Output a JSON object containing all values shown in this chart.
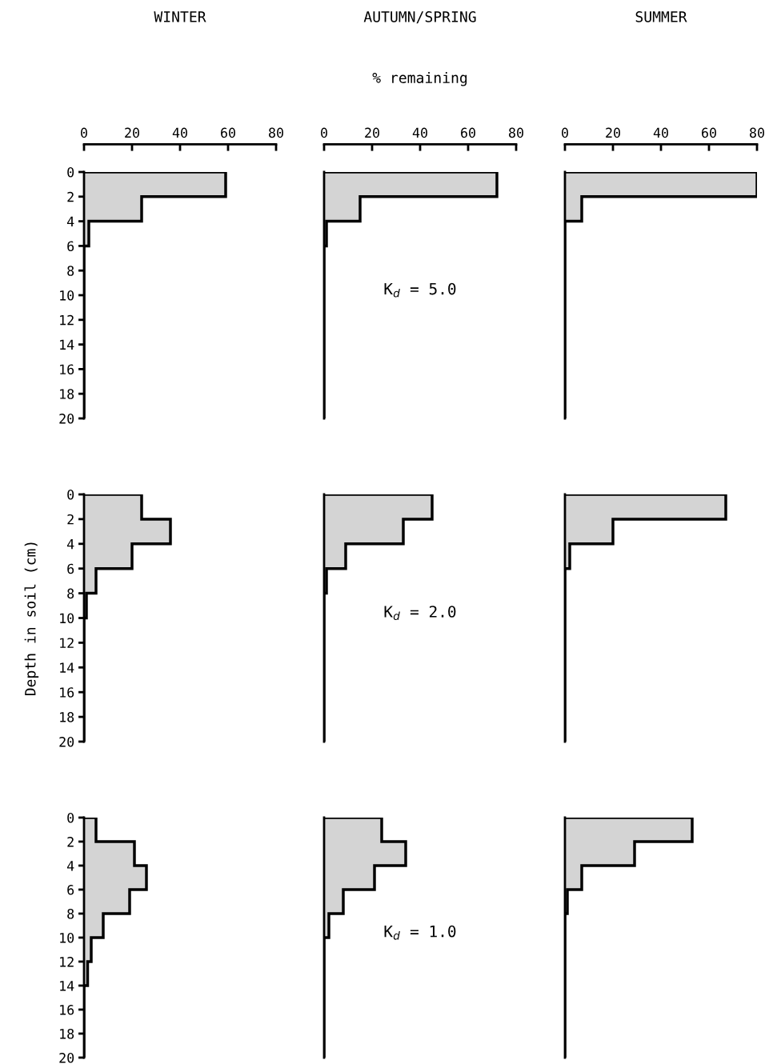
{
  "chart_data": [
    {
      "type": "histogram",
      "orientation": "horizontal",
      "title": "WINTER",
      "ylabel": null,
      "bins": [
        0,
        2,
        4,
        6,
        8,
        10,
        12,
        14,
        16,
        18,
        20
      ],
      "values": [
        59,
        24,
        2,
        0,
        0,
        0,
        0,
        0,
        0,
        0
      ],
      "color": "#d4d4d4",
      "xlim": [
        0,
        80
      ],
      "xticks": [
        0,
        20,
        40,
        60,
        80
      ],
      "ylim": [
        20,
        0
      ],
      "yticks": [
        0,
        2,
        4,
        6,
        8,
        10,
        12,
        14,
        16,
        18,
        20
      ]
    },
    {
      "type": "histogram",
      "orientation": "horizontal",
      "title": "AUTUMN/SPRING",
      "xlabel": "% remaining",
      "annotations": [
        "K$_{d}$ = 5.0"
      ],
      "bins": [
        0,
        2,
        4,
        6,
        8,
        10,
        12,
        14,
        16,
        18,
        20
      ],
      "values": [
        72,
        15,
        1,
        0,
        0,
        0,
        0,
        0,
        0,
        0
      ],
      "color": "#d4d4d4",
      "xlim": [
        0,
        80
      ],
      "xticks": [
        0,
        20,
        40,
        60,
        80
      ],
      "ylim": [
        20,
        0
      ],
      "yticks": [
        0,
        2,
        4,
        6,
        8,
        10,
        12,
        14,
        16,
        18,
        20
      ],
      "tick_labels": "x"
    },
    {
      "type": "histogram",
      "orientation": "horizontal",
      "title": "SUMMER",
      "bins": [
        0,
        2,
        4,
        6,
        8,
        10,
        12,
        14,
        16,
        18,
        20
      ],
      "values": [
        80,
        7,
        0,
        0,
        0,
        0,
        0,
        0,
        0,
        0
      ],
      "color": "#d4d4d4",
      "xlim": [
        0,
        80
      ],
      "xticks": [
        0,
        20,
        40,
        60,
        80
      ],
      "ylim": [
        20,
        0
      ],
      "yticks": [
        0,
        2,
        4,
        6,
        8,
        10,
        12,
        14,
        16,
        18,
        20
      ],
      "tick_labels": "x"
    },
    {
      "type": "histogram",
      "orientation": "horizontal",
      "ylabel": "Depth in soil (cm)",
      "bins": [
        0,
        2,
        4,
        6,
        8,
        10,
        12,
        14,
        16,
        18,
        20
      ],
      "values": [
        24,
        36,
        20,
        5,
        1,
        0,
        0,
        0,
        0,
        0
      ],
      "color": "#d4d4d4",
      "xlim": [
        0,
        80
      ],
      "xticks": [
        0,
        20,
        40,
        60,
        80
      ],
      "ylim": [
        20,
        0
      ],
      "yticks": [
        0,
        2,
        4,
        6,
        8,
        10,
        12,
        14,
        16,
        18,
        20
      ],
      "tick_labels": "y"
    },
    {
      "type": "histogram",
      "orientation": "horizontal",
      "annotations": [
        "K$_{d}$ = 2.0"
      ],
      "bins": [
        0,
        2,
        4,
        6,
        8,
        10,
        12,
        14,
        16,
        18,
        20
      ],
      "values": [
        45,
        33,
        9,
        1,
        0,
        0,
        0,
        0,
        0,
        0
      ],
      "color": "#d4d4d4",
      "xlim": [
        0,
        80
      ],
      "xticks": [
        0,
        20,
        40,
        60,
        80
      ],
      "ylim": [
        20,
        0
      ],
      "yticks": [
        0,
        2,
        4,
        6,
        8,
        10,
        12,
        14,
        16,
        18,
        20
      ],
      "tick_labels": false
    },
    {
      "type": "histogram",
      "orientation": "horizontal",
      "bins": [
        0,
        2,
        4,
        6,
        8,
        10,
        12,
        14,
        16,
        18,
        20
      ],
      "values": [
        67,
        20,
        2,
        0,
        0,
        0,
        0,
        0,
        0,
        0
      ],
      "color": "#d4d4d4",
      "xlim": [
        0,
        80
      ],
      "xticks": [
        0,
        20,
        40,
        60,
        80
      ],
      "ylim": [
        20,
        0
      ],
      "yticks": [
        0,
        2,
        4,
        6,
        8,
        10,
        12,
        14,
        16,
        18,
        20
      ],
      "tick_labels": false
    },
    {
      "type": "histogram",
      "orientation": "horizontal",
      "bins": [
        0,
        2,
        4,
        6,
        8,
        10,
        12,
        14,
        16,
        18,
        20
      ],
      "values": [
        5,
        21,
        26,
        19,
        8,
        3,
        1.5,
        0,
        0,
        0
      ],
      "color": "#d4d4d4",
      "xlim": [
        0,
        80
      ],
      "xticks": [
        0,
        20,
        40,
        60,
        80
      ],
      "ylim": [
        20,
        0
      ],
      "yticks": [
        0,
        2,
        4,
        6,
        8,
        10,
        12,
        14,
        16,
        18,
        20
      ],
      "tick_labels": "y"
    },
    {
      "type": "histogram",
      "orientation": "horizontal",
      "annotations": [
        "K$_{d}$ = 1.0"
      ],
      "bins": [
        0,
        2,
        4,
        6,
        8,
        10,
        12,
        14,
        16,
        18,
        20
      ],
      "values": [
        24,
        34,
        21,
        8,
        2,
        0,
        0,
        0,
        0,
        0
      ],
      "color": "#d4d4d4",
      "xlim": [
        0,
        80
      ],
      "xticks": [
        0,
        20,
        40,
        60,
        80
      ],
      "ylim": [
        20,
        0
      ],
      "yticks": [
        0,
        2,
        4,
        6,
        8,
        10,
        12,
        14,
        16,
        18,
        20
      ],
      "tick_labels": false
    },
    {
      "type": "histogram",
      "orientation": "horizontal",
      "bins": [
        0,
        2,
        4,
        6,
        8,
        10,
        12,
        14,
        16,
        18,
        20
      ],
      "values": [
        53,
        29,
        7,
        1,
        0,
        0,
        0,
        0,
        0,
        0
      ],
      "color": "#d4d4d4",
      "xlim": [
        0,
        80
      ],
      "xticks": [
        0,
        20,
        40,
        60,
        80
      ],
      "ylim": [
        20,
        0
      ],
      "yticks": [
        0,
        2,
        4,
        6,
        8,
        10,
        12,
        14,
        16,
        18,
        20
      ],
      "tick_labels": false
    }
  ]
}
